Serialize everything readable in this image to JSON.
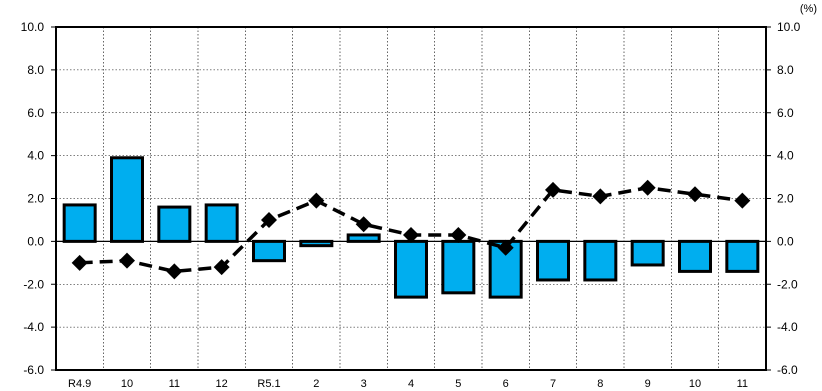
{
  "unit_label": "(%)",
  "chart_data": {
    "type": "bar",
    "categories": [
      "R4.9",
      "10",
      "11",
      "12",
      "R5.1",
      "2",
      "3",
      "4",
      "5",
      "6",
      "7",
      "8",
      "9",
      "10",
      "11"
    ],
    "series": [
      {
        "kind": "bar",
        "values": [
          1.7,
          3.9,
          1.6,
          1.7,
          -0.9,
          -0.2,
          0.3,
          -2.6,
          -2.4,
          -2.6,
          -1.8,
          -1.8,
          -1.1,
          -1.4,
          -1.4
        ],
        "color": "#00aeef"
      },
      {
        "kind": "line",
        "values": [
          -1.0,
          -0.9,
          -1.4,
          -1.2,
          1.0,
          1.9,
          0.8,
          0.3,
          0.3,
          -0.3,
          2.4,
          2.1,
          2.5,
          2.2,
          1.9
        ],
        "color": "#000000"
      }
    ],
    "ylim": [
      -6.0,
      10.0
    ],
    "yticks": [
      "10.0",
      "8.0",
      "6.0",
      "4.0",
      "2.0",
      "0.0",
      "-2.0",
      "-4.0",
      "-6.0"
    ],
    "y2ticks": [
      "10.0",
      "8.0",
      "6.0",
      "4.0",
      "2.0",
      "0.0",
      "-2.0",
      "-4.0",
      "-6.0"
    ],
    "grid": true
  }
}
